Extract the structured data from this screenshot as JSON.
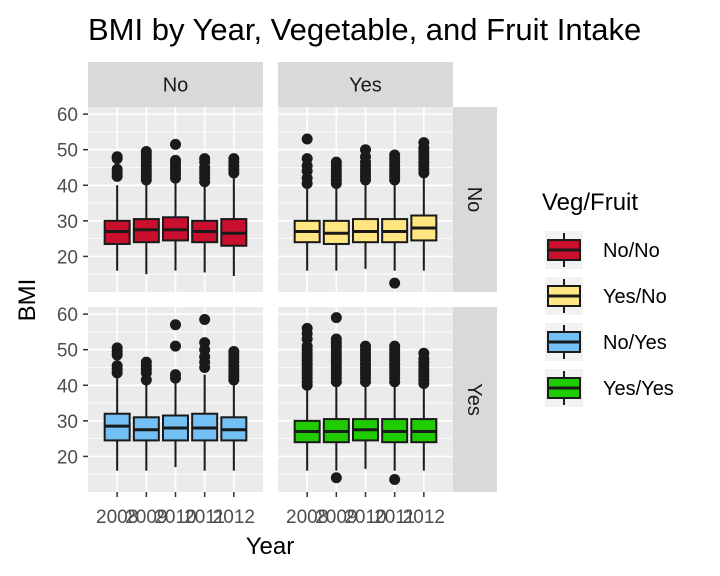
{
  "chart_data": {
    "type": "box",
    "title": "BMI by Year, Vegetable, and Fruit Intake",
    "xlabel": "Year",
    "ylabel": "BMI",
    "ylim": [
      10,
      62
    ],
    "yticks": [
      20,
      30,
      40,
      50,
      60
    ],
    "categories": [
      "2008",
      "2009",
      "2010",
      "2011",
      "2012"
    ],
    "facet_cols": [
      "No",
      "Yes"
    ],
    "facet_rows": [
      "No",
      "Yes"
    ],
    "legend": {
      "title": "Veg/Fruit",
      "position": "right",
      "entries": [
        {
          "label": "No/No",
          "color": "#c8102e"
        },
        {
          "label": "Yes/No",
          "color": "#ffe680"
        },
        {
          "label": "No/Yes",
          "color": "#74c0f5"
        },
        {
          "label": "Yes/Yes",
          "color": "#1fcc00"
        }
      ]
    },
    "panels": [
      {
        "row": "No",
        "col": "No",
        "series": "No/No",
        "boxes": [
          {
            "year": "2008",
            "q1": 23.5,
            "median": 27.0,
            "q3": 30.0,
            "lower": 16.0,
            "upper": 40.0,
            "outliers": [
              42.5,
              43.5,
              44.5,
              47.5,
              48.0
            ]
          },
          {
            "year": "2009",
            "q1": 24.0,
            "median": 27.5,
            "q3": 30.5,
            "lower": 15.0,
            "upper": 40.0,
            "outliers": [
              41.5,
              42.5,
              43.5,
              44.5,
              45.5,
              46.5,
              47.5,
              48.5,
              49.5
            ]
          },
          {
            "year": "2010",
            "q1": 24.5,
            "median": 27.5,
            "q3": 31.0,
            "lower": 16.0,
            "upper": 41.0,
            "outliers": [
              42.0,
              43.0,
              44.0,
              45.0,
              46.0,
              47.0,
              51.5
            ]
          },
          {
            "year": "2011",
            "q1": 24.0,
            "median": 27.0,
            "q3": 30.0,
            "lower": 15.5,
            "upper": 39.5,
            "outliers": [
              41.0,
              42.0,
              43.0,
              44.0,
              45.0,
              46.5,
              47.5
            ]
          },
          {
            "year": "2012",
            "q1": 23.0,
            "median": 26.5,
            "q3": 30.5,
            "lower": 14.5,
            "upper": 42.0,
            "outliers": [
              43.5,
              44.5,
              45.5,
              46.5,
              47.5
            ]
          }
        ]
      },
      {
        "row": "No",
        "col": "Yes",
        "series": "Yes/No",
        "boxes": [
          {
            "year": "2008",
            "q1": 24.0,
            "median": 27.0,
            "q3": 30.0,
            "lower": 16.0,
            "upper": 39.0,
            "outliers": [
              40.5,
              42.0,
              44.0,
              45.5,
              47.5,
              53.0
            ]
          },
          {
            "year": "2009",
            "q1": 23.5,
            "median": 26.5,
            "q3": 30.0,
            "lower": 16.0,
            "upper": 39.0,
            "outliers": [
              40.5,
              41.5,
              42.5,
              43.5,
              44.5,
              45.5,
              46.5
            ]
          },
          {
            "year": "2010",
            "q1": 24.0,
            "median": 27.0,
            "q3": 30.5,
            "lower": 16.5,
            "upper": 40.0,
            "outliers": [
              41.5,
              42.5,
              43.5,
              44.5,
              45.5,
              46.5,
              48.0,
              50.0
            ]
          },
          {
            "year": "2011",
            "q1": 24.0,
            "median": 27.0,
            "q3": 30.5,
            "lower": 16.0,
            "upper": 40.0,
            "outliers": [
              12.5,
              41.5,
              42.5,
              43.5,
              44.5,
              45.5,
              46.5,
              47.5,
              48.5
            ]
          },
          {
            "year": "2012",
            "q1": 24.5,
            "median": 28.0,
            "q3": 31.5,
            "lower": 16.0,
            "upper": 42.0,
            "outliers": [
              43.5,
              44.5,
              45.5,
              46.5,
              47.5,
              48.5,
              49.5,
              50.5,
              52.0
            ]
          }
        ]
      },
      {
        "row": "Yes",
        "col": "No",
        "series": "No/Yes",
        "boxes": [
          {
            "year": "2008",
            "q1": 24.5,
            "median": 28.5,
            "q3": 32.0,
            "lower": 16.0,
            "upper": 42.0,
            "outliers": [
              43.5,
              44.5,
              45.5,
              48.5,
              49.5,
              50.5
            ]
          },
          {
            "year": "2009",
            "q1": 24.5,
            "median": 27.5,
            "q3": 31.0,
            "lower": 16.0,
            "upper": 40.5,
            "outliers": [
              41.5,
              43.5,
              44.5,
              45.5,
              46.5
            ]
          },
          {
            "year": "2010",
            "q1": 24.5,
            "median": 28.0,
            "q3": 31.5,
            "lower": 17.0,
            "upper": 41.0,
            "outliers": [
              42.0,
              43.0,
              51.0,
              57.0
            ]
          },
          {
            "year": "2011",
            "q1": 24.5,
            "median": 28.0,
            "q3": 32.0,
            "lower": 16.0,
            "upper": 43.0,
            "outliers": [
              45.0,
              46.5,
              48.0,
              50.0,
              52.0,
              58.5
            ]
          },
          {
            "year": "2012",
            "q1": 24.5,
            "median": 27.5,
            "q3": 31.0,
            "lower": 16.0,
            "upper": 40.5,
            "outliers": [
              41.5,
              42.5,
              43.5,
              44.5,
              45.5,
              46.5,
              47.5,
              48.5,
              49.5
            ]
          }
        ]
      },
      {
        "row": "Yes",
        "col": "Yes",
        "series": "Yes/Yes",
        "boxes": [
          {
            "year": "2008",
            "q1": 24.0,
            "median": 27.0,
            "q3": 30.0,
            "lower": 16.0,
            "upper": 39.0,
            "outliers": [
              40.0,
              41.0,
              42.0,
              43.0,
              44.0,
              45.0,
              46.0,
              47.0,
              48.0,
              49.0,
              50.0,
              51.0,
              53.0,
              54.5,
              56.0
            ]
          },
          {
            "year": "2009",
            "q1": 24.0,
            "median": 27.0,
            "q3": 30.5,
            "lower": 16.0,
            "upper": 39.5,
            "outliers": [
              14.0,
              41.0,
              42.0,
              43.0,
              44.0,
              45.0,
              46.0,
              47.0,
              48.0,
              49.0,
              50.0,
              51.0,
              52.0,
              53.0,
              59.0
            ]
          },
          {
            "year": "2010",
            "q1": 24.5,
            "median": 27.5,
            "q3": 30.5,
            "lower": 16.5,
            "upper": 39.5,
            "outliers": [
              41.0,
              42.0,
              43.0,
              44.0,
              45.0,
              46.0,
              47.0,
              48.0,
              49.0,
              50.0,
              51.0
            ]
          },
          {
            "year": "2011",
            "q1": 24.0,
            "median": 27.0,
            "q3": 30.5,
            "lower": 16.0,
            "upper": 39.5,
            "outliers": [
              13.5,
              41.0,
              42.0,
              43.0,
              44.0,
              45.0,
              46.0,
              47.0,
              48.0,
              49.0,
              50.0,
              51.0
            ]
          },
          {
            "year": "2012",
            "q1": 24.0,
            "median": 27.0,
            "q3": 30.5,
            "lower": 16.0,
            "upper": 39.5,
            "outliers": [
              40.5,
              41.5,
              42.5,
              43.5,
              44.5,
              45.5,
              46.5,
              47.5,
              49.0
            ]
          }
        ]
      }
    ]
  }
}
